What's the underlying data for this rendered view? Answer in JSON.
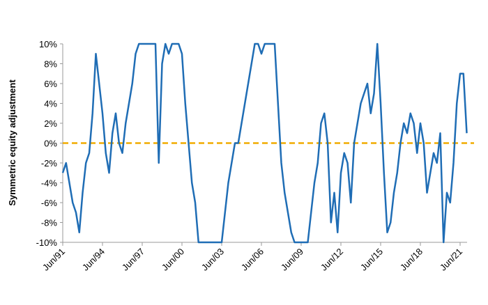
{
  "chart_data": {
    "type": "line",
    "y_label": "Symmetric equity adjustment",
    "x": [
      "Jun/91",
      "Sep/91",
      "Dec/91",
      "Mar/92",
      "Jun/92",
      "Sep/92",
      "Dec/92",
      "Mar/93",
      "Jun/93",
      "Sep/93",
      "Dec/93",
      "Mar/94",
      "Jun/94",
      "Sep/94",
      "Dec/94",
      "Mar/95",
      "Jun/95",
      "Sep/95",
      "Dec/95",
      "Mar/96",
      "Jun/96",
      "Sep/96",
      "Dec/96",
      "Mar/97",
      "Jun/97",
      "Sep/97",
      "Dec/97",
      "Mar/98",
      "Jun/98",
      "Sep/98",
      "Dec/98",
      "Mar/99",
      "Jun/99",
      "Sep/99",
      "Dec/99",
      "Mar/00",
      "Jun/00",
      "Sep/00",
      "Dec/00",
      "Mar/01",
      "Jun/01",
      "Sep/01",
      "Dec/01",
      "Mar/02",
      "Jun/02",
      "Sep/02",
      "Dec/02",
      "Mar/03",
      "Jun/03",
      "Sep/03",
      "Dec/03",
      "Mar/04",
      "Jun/04",
      "Sep/04",
      "Dec/04",
      "Mar/05",
      "Jun/05",
      "Sep/05",
      "Dec/05",
      "Mar/06",
      "Jun/06",
      "Sep/06",
      "Dec/06",
      "Mar/07",
      "Jun/07",
      "Sep/07",
      "Dec/07",
      "Mar/08",
      "Jun/08",
      "Sep/08",
      "Dec/08",
      "Mar/09",
      "Jun/09",
      "Sep/09",
      "Dec/09",
      "Mar/10",
      "Jun/10",
      "Sep/10",
      "Dec/10",
      "Mar/11",
      "Jun/11",
      "Sep/11",
      "Dec/11",
      "Mar/12",
      "Jun/12",
      "Sep/12",
      "Dec/12",
      "Mar/13",
      "Jun/13",
      "Sep/13",
      "Dec/13",
      "Mar/14",
      "Jun/14",
      "Sep/14",
      "Dec/14",
      "Mar/15",
      "Jun/15",
      "Sep/15",
      "Dec/15",
      "Mar/16",
      "Jun/16",
      "Sep/16",
      "Dec/16",
      "Mar/17",
      "Jun/17",
      "Sep/17",
      "Dec/17",
      "Mar/18",
      "Jun/18",
      "Sep/18",
      "Dec/18",
      "Mar/19",
      "Jun/19",
      "Sep/19",
      "Dec/19",
      "Mar/20",
      "Jun/20",
      "Sep/20",
      "Dec/20",
      "Mar/21",
      "Jun/21",
      "Sep/21",
      "Dec/21"
    ],
    "series": [
      {
        "color": "#1f6db5",
        "values": [
          -3,
          -2,
          -4,
          -6,
          -7,
          -9,
          -5,
          -2,
          -1,
          3,
          9,
          6,
          3,
          -1,
          -3,
          1,
          3,
          0,
          -1,
          2,
          4,
          6,
          9,
          10,
          10,
          10,
          10,
          10,
          10,
          -2,
          8,
          10,
          9,
          10,
          10,
          10,
          9,
          4,
          0,
          -4,
          -6,
          -10,
          -10,
          -10,
          -10,
          -10,
          -10,
          -10,
          -10,
          -7,
          -4,
          -2,
          0,
          0,
          2,
          4,
          6,
          8,
          10,
          10,
          9,
          10,
          10,
          10,
          10,
          4,
          -2,
          -5,
          -7,
          -9,
          -10,
          -10,
          -10,
          -10,
          -10,
          -7,
          -4,
          -2,
          2,
          3,
          0,
          -8,
          -5,
          -9,
          -3,
          -1,
          -2,
          -6,
          0,
          2,
          4,
          5,
          6,
          3,
          5,
          10,
          4,
          -3,
          -9,
          -8,
          -5,
          -3,
          0,
          2,
          1,
          3,
          2,
          -1,
          2,
          0,
          -5,
          -3,
          -1,
          -2,
          1,
          -10,
          -5,
          -6,
          -2,
          4,
          7,
          7,
          1
        ]
      }
    ],
    "ylim": [
      -10,
      10
    ],
    "yticks": [
      {
        "value": -10,
        "label": "-10%"
      },
      {
        "value": -8,
        "label": "-8%"
      },
      {
        "value": -6,
        "label": "-6%"
      },
      {
        "value": -4,
        "label": "-4%"
      },
      {
        "value": -2,
        "label": "-2%"
      },
      {
        "value": 0,
        "label": "0%"
      },
      {
        "value": 2,
        "label": "2%"
      },
      {
        "value": 4,
        "label": "4%"
      },
      {
        "value": 6,
        "label": "6%"
      },
      {
        "value": 8,
        "label": "8%"
      },
      {
        "value": 10,
        "label": "10%"
      }
    ],
    "reference_line": {
      "y": 0,
      "color": "#f0ab00"
    },
    "grid": false
  }
}
